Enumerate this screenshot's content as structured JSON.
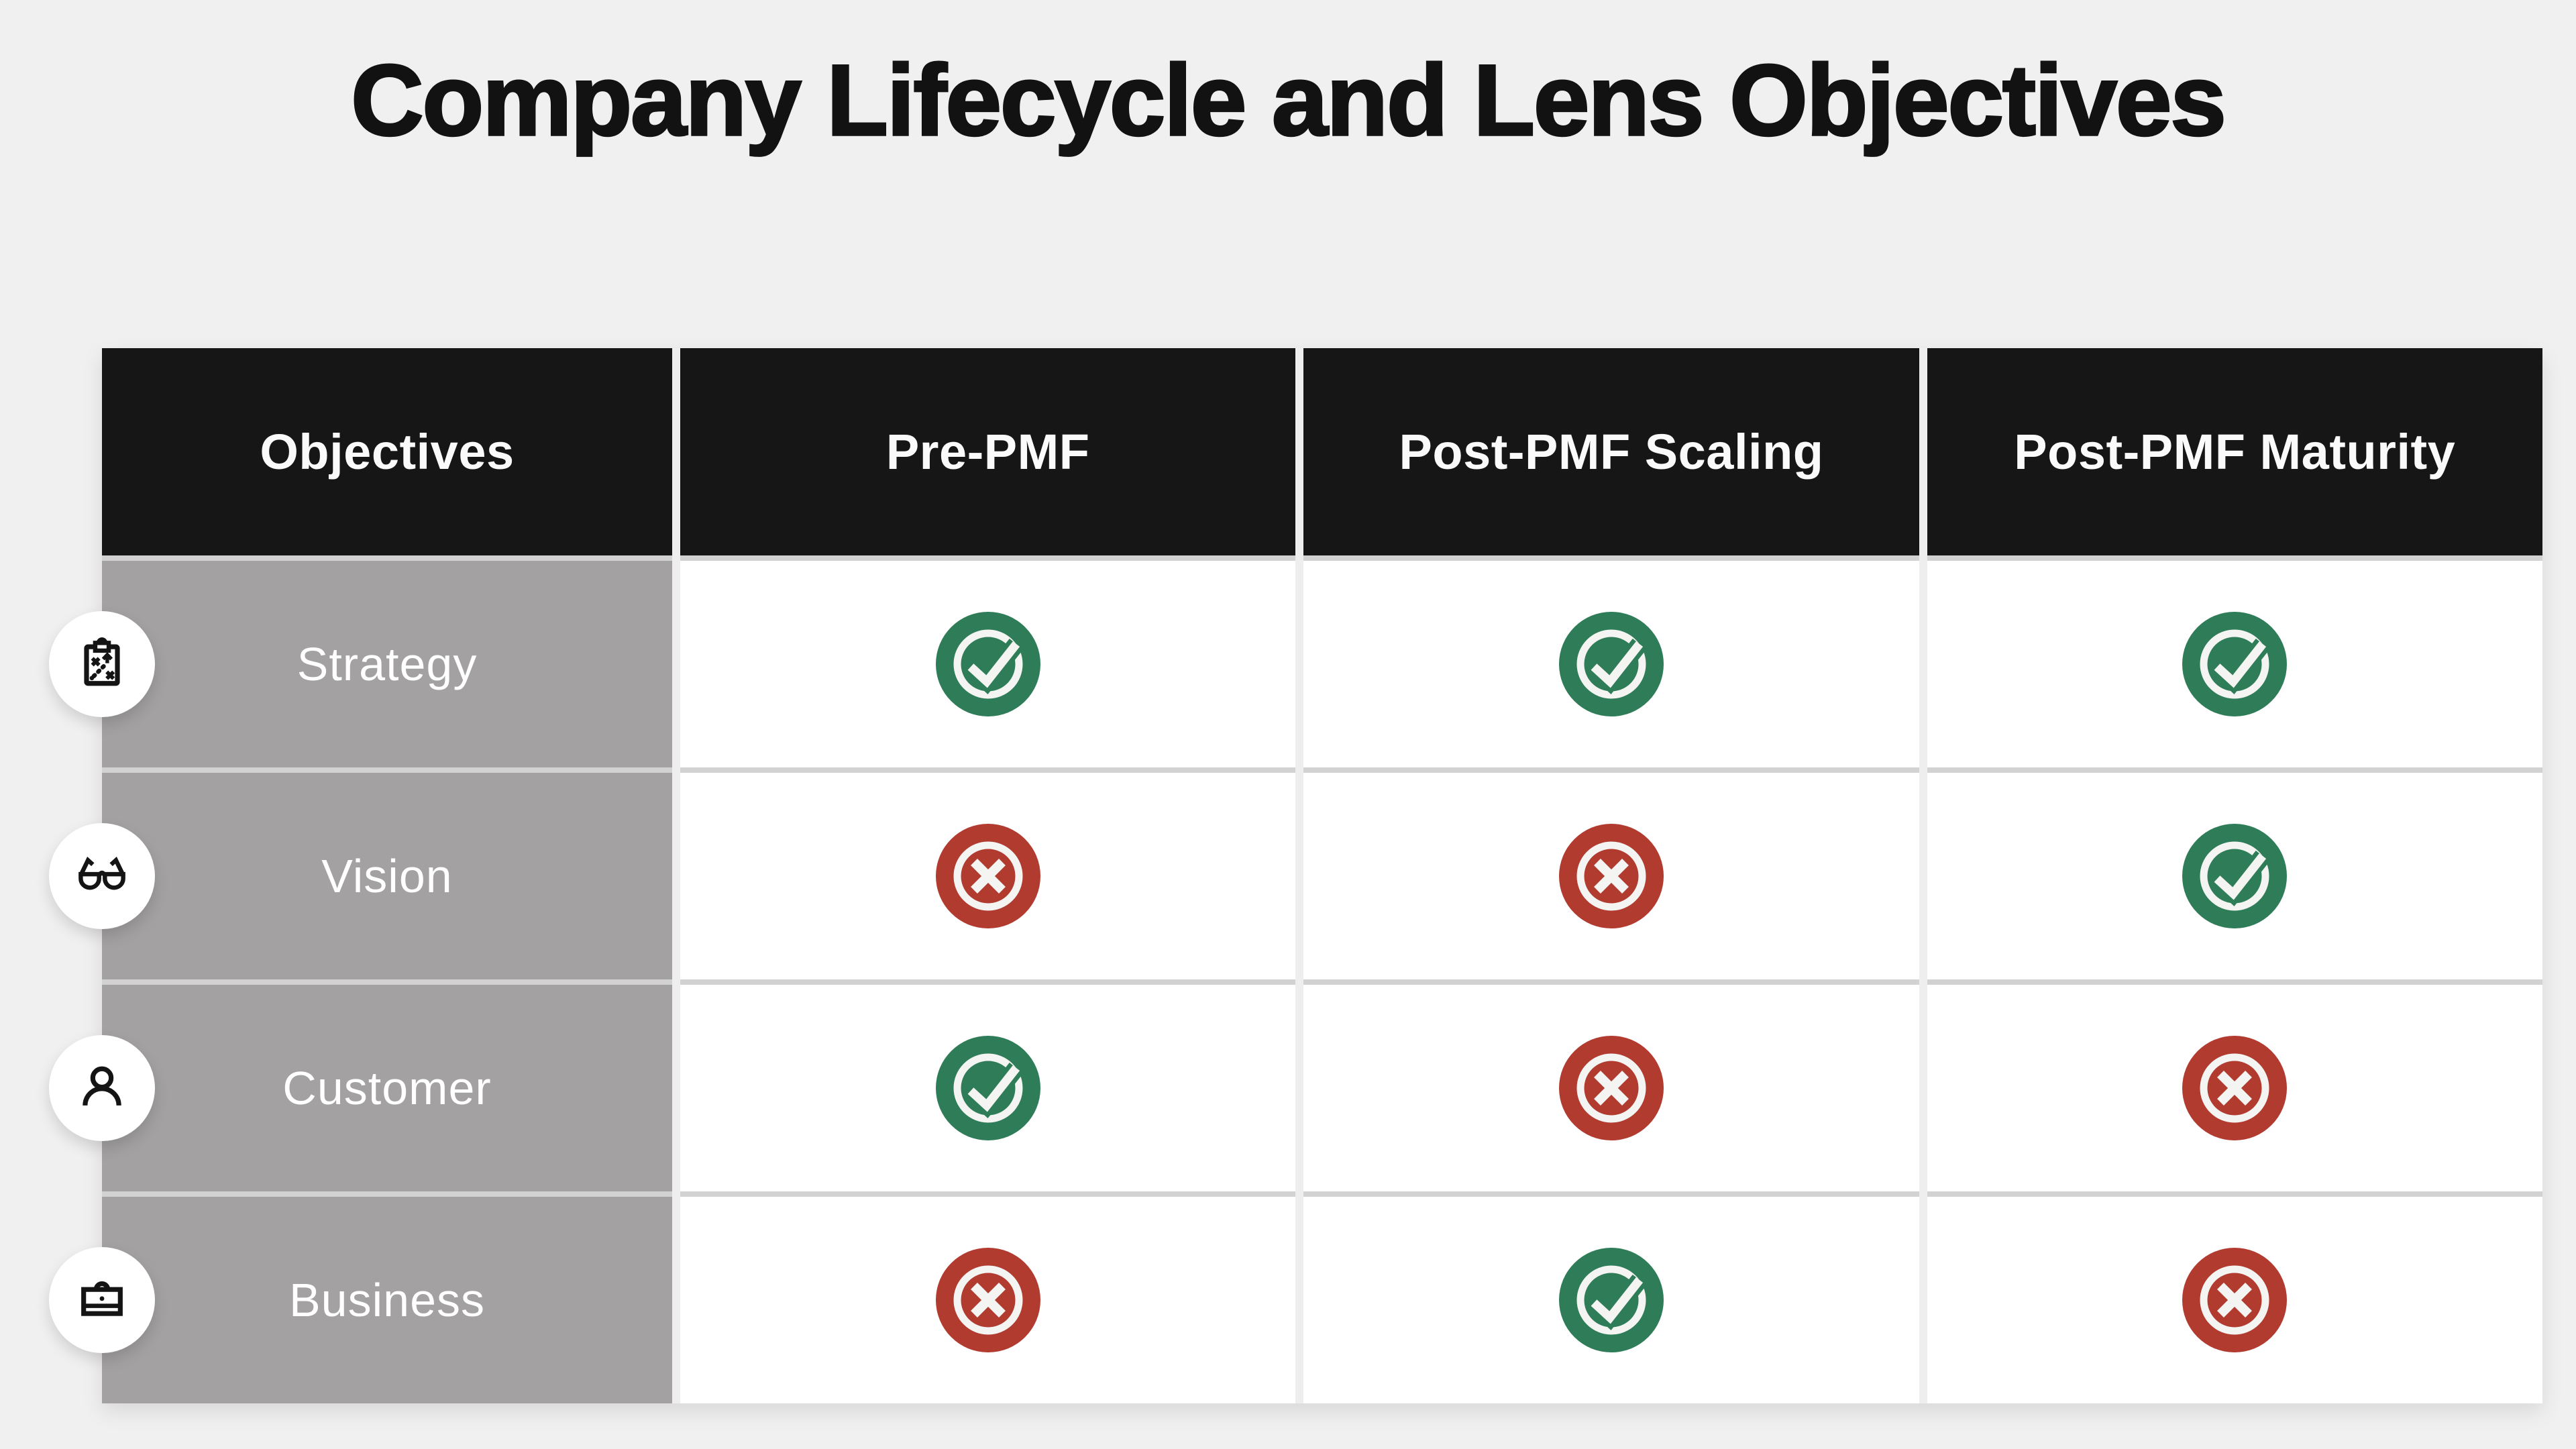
{
  "title": "Company Lifecycle and Lens Objectives",
  "table": {
    "corner_header": "Objectives",
    "column_headers": [
      "Pre-PMF",
      "Post-PMF Scaling",
      "Post-PMF Maturity"
    ],
    "rows": [
      {
        "label": "Strategy",
        "icon": "strategy-clipboard-icon",
        "values": [
          "yes",
          "yes",
          "yes"
        ]
      },
      {
        "label": "Vision",
        "icon": "glasses-icon",
        "values": [
          "no",
          "no",
          "yes"
        ]
      },
      {
        "label": "Customer",
        "icon": "person-icon",
        "values": [
          "yes",
          "no",
          "no"
        ]
      },
      {
        "label": "Business",
        "icon": "briefcase-icon",
        "values": [
          "no",
          "yes",
          "no"
        ]
      }
    ]
  },
  "colors": {
    "positive": "#2e7d58",
    "negative": "#b23b30",
    "glyph": "#f4f4f2",
    "header_bg": "#161616",
    "row_label_bg": "#a3a1a1",
    "page_bg": "#f1f0f0"
  },
  "chart_data": {
    "type": "table",
    "title": "Company Lifecycle and Lens Objectives",
    "row_header": "Objectives",
    "columns": [
      "Pre-PMF",
      "Post-PMF Scaling",
      "Post-PMF Maturity"
    ],
    "rows": [
      "Strategy",
      "Vision",
      "Customer",
      "Business"
    ],
    "matrix": [
      [
        "yes",
        "yes",
        "yes"
      ],
      [
        "no",
        "no",
        "yes"
      ],
      [
        "yes",
        "no",
        "no"
      ],
      [
        "no",
        "yes",
        "no"
      ]
    ],
    "legend": {
      "yes": "green check-circle",
      "no": "red x-circle"
    }
  }
}
